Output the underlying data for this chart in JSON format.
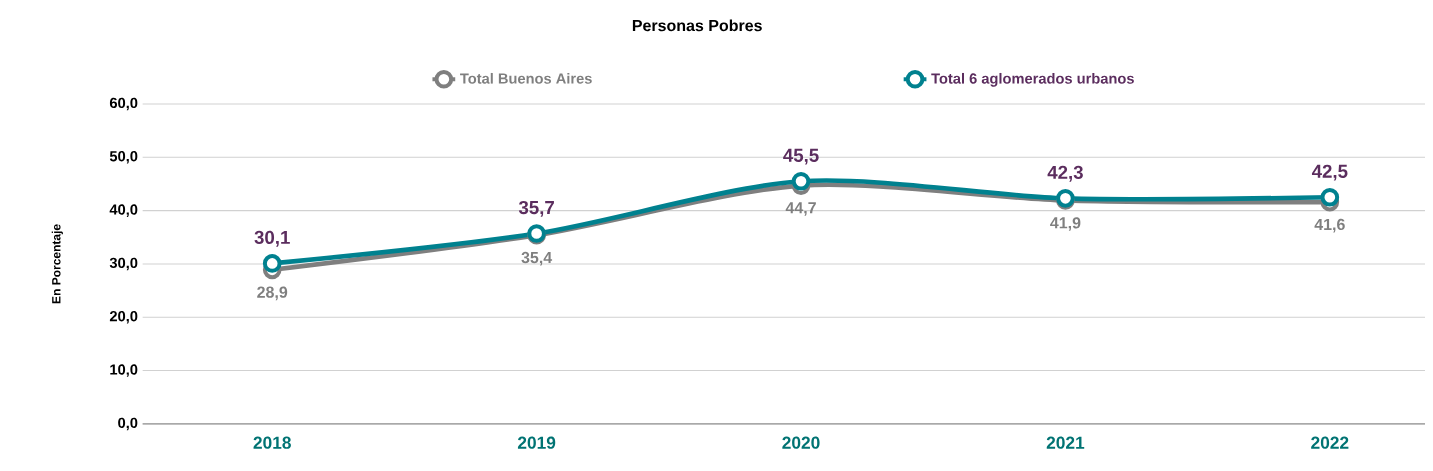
{
  "chart_data": {
    "type": "line",
    "title": "Personas Pobres",
    "ylabel": "En Porcentaje",
    "categories": [
      "2018",
      "2019",
      "2020",
      "2021",
      "2022"
    ],
    "series": [
      {
        "name": "Total Buenos Aires",
        "color": "#7f7f7f",
        "values": [
          28.9,
          35.4,
          44.7,
          41.9,
          41.6
        ],
        "value_labels": [
          "28,9",
          "35,4",
          "44,7",
          "41,9",
          "41,6"
        ]
      },
      {
        "name": "Total 6 aglomerados urbanos",
        "color": "#00818f",
        "values": [
          30.1,
          35.7,
          45.5,
          42.3,
          42.5
        ],
        "value_labels": [
          "30,1",
          "35,7",
          "45,5",
          "42,3",
          "42,5"
        ]
      }
    ],
    "ylim": [
      0,
      60
    ],
    "yticks": [
      {
        "value": 0,
        "label": "0,0"
      },
      {
        "value": 10,
        "label": "10,0"
      },
      {
        "value": 20,
        "label": "20,0"
      },
      {
        "value": 30,
        "label": "30,0"
      },
      {
        "value": 40,
        "label": "40,0"
      },
      {
        "value": 50,
        "label": "50,0"
      },
      {
        "value": 60,
        "label": "60,0"
      }
    ],
    "grid": "y",
    "legend": "top",
    "marker": "circle",
    "line_style": "solid"
  }
}
